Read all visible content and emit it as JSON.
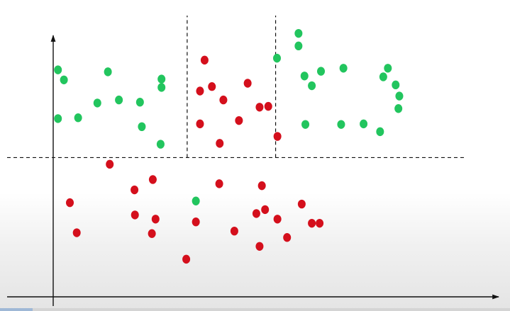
{
  "colors": {
    "background": "#ffffff",
    "axis": "#111111",
    "divider": "#111111",
    "class_green": "#22c55e",
    "class_red": "#d40f1c"
  },
  "chart_data": {
    "type": "scatter",
    "title": "",
    "xlabel": "",
    "ylabel": "",
    "xlim": [
      0,
      100
    ],
    "ylim": [
      0,
      100
    ],
    "grid": false,
    "dividers": [
      {
        "orientation": "horizontal",
        "value": 49,
        "style": "dashed"
      },
      {
        "orientation": "vertical",
        "value": 39.3,
        "from": 49,
        "to": 100,
        "style": "dashed"
      },
      {
        "orientation": "vertical",
        "value": 58.6,
        "from": 49,
        "to": 100,
        "style": "dashed"
      }
    ],
    "series": [
      {
        "color": "#22c55e",
        "points": [
          [
            11.1,
            80.5
          ],
          [
            12.4,
            76.9
          ],
          [
            22.0,
            79.8
          ],
          [
            11.1,
            63.0
          ],
          [
            15.5,
            63.3
          ],
          [
            19.7,
            68.6
          ],
          [
            24.4,
            69.7
          ],
          [
            29.0,
            68.9
          ],
          [
            33.7,
            74.2
          ],
          [
            33.7,
            77.2
          ],
          [
            29.4,
            60.1
          ],
          [
            33.5,
            53.8
          ],
          [
            58.9,
            84.7
          ],
          [
            63.6,
            93.6
          ],
          [
            63.6,
            89.1
          ],
          [
            64.9,
            78.3
          ],
          [
            68.5,
            80.0
          ],
          [
            66.5,
            74.8
          ],
          [
            73.4,
            81.1
          ],
          [
            72.9,
            60.9
          ],
          [
            77.8,
            61.1
          ],
          [
            81.4,
            58.3
          ],
          [
            82.1,
            78.0
          ],
          [
            84.8,
            75.1
          ],
          [
            85.6,
            71.1
          ],
          [
            85.4,
            66.6
          ],
          [
            65.1,
            60.9
          ],
          [
            83.1,
            81.1
          ],
          [
            41.2,
            33.4
          ]
        ]
      },
      {
        "color": "#d40f1c",
        "points": [
          [
            43.1,
            84.0
          ],
          [
            42.1,
            72.9
          ],
          [
            44.7,
            74.5
          ],
          [
            47.2,
            69.7
          ],
          [
            52.5,
            75.7
          ],
          [
            50.6,
            62.3
          ],
          [
            42.1,
            61.1
          ],
          [
            46.4,
            54.1
          ],
          [
            55.1,
            67.1
          ],
          [
            57.0,
            67.4
          ],
          [
            59.0,
            56.6
          ],
          [
            22.4,
            46.6
          ],
          [
            31.8,
            41.1
          ],
          [
            27.8,
            37.4
          ],
          [
            46.3,
            39.6
          ],
          [
            55.6,
            38.9
          ],
          [
            13.7,
            32.8
          ],
          [
            27.9,
            28.4
          ],
          [
            32.4,
            26.9
          ],
          [
            31.6,
            21.7
          ],
          [
            15.2,
            22.0
          ],
          [
            41.2,
            25.9
          ],
          [
            49.6,
            22.6
          ],
          [
            54.4,
            28.9
          ],
          [
            56.3,
            30.3
          ],
          [
            59.0,
            26.9
          ],
          [
            64.3,
            32.3
          ],
          [
            61.1,
            20.3
          ],
          [
            66.5,
            25.4
          ],
          [
            68.2,
            25.4
          ],
          [
            55.1,
            17.1
          ],
          [
            39.1,
            12.5
          ]
        ]
      }
    ]
  }
}
